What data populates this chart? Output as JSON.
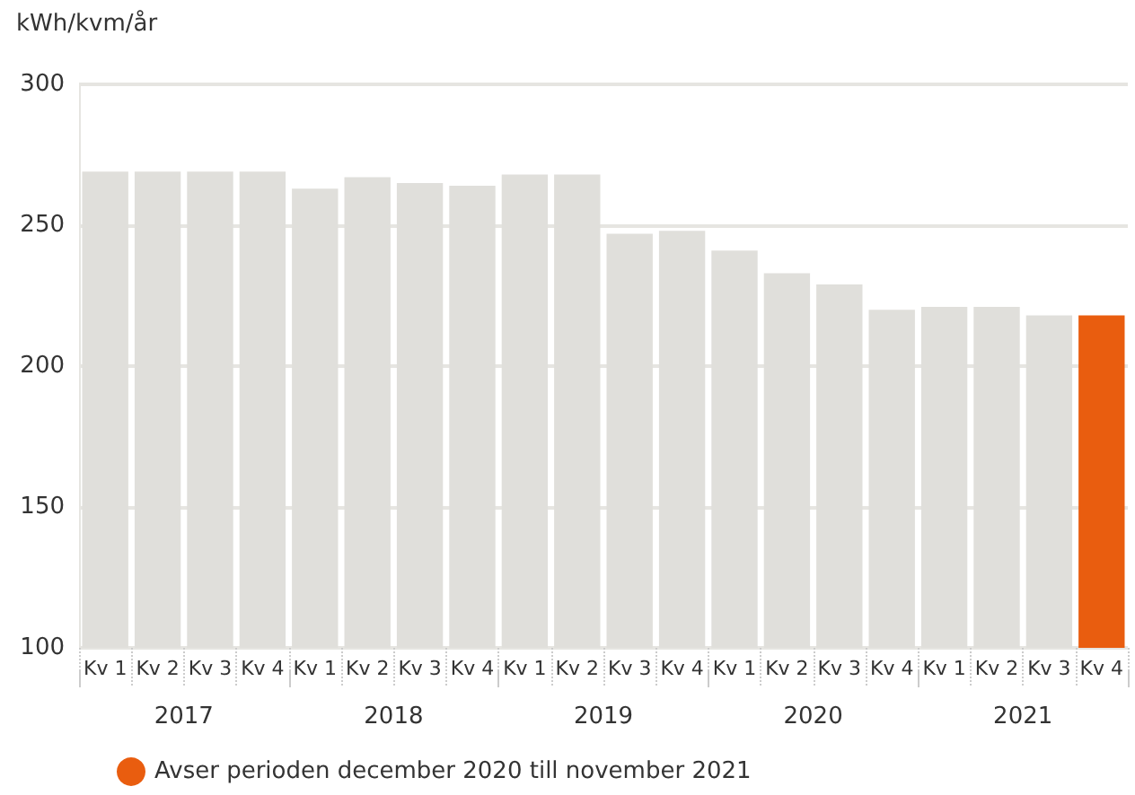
{
  "chart_data": {
    "type": "bar",
    "ylabel": "kWh/kvm/år",
    "categories": [
      "Kv 1",
      "Kv 2",
      "Kv 3",
      "Kv 4",
      "Kv 1",
      "Kv 2",
      "Kv 3",
      "Kv 4",
      "Kv 1",
      "Kv 2",
      "Kv 3",
      "Kv 4",
      "Kv 1",
      "Kv 2",
      "Kv 3",
      "Kv 4",
      "Kv 1",
      "Kv 2",
      "Kv 3",
      "Kv 4"
    ],
    "series": [
      {
        "color": "#e0dfdb",
        "values": [
          269,
          269,
          269,
          269,
          263,
          267,
          265,
          264,
          268,
          268,
          247,
          248,
          241,
          233,
          229,
          220,
          221,
          221,
          218,
          null
        ]
      },
      {
        "name": "Avser perioden december 2020 till november 2021",
        "color": "#e95d0f",
        "values": [
          null,
          null,
          null,
          null,
          null,
          null,
          null,
          null,
          null,
          null,
          null,
          null,
          null,
          null,
          null,
          null,
          null,
          null,
          null,
          218
        ]
      }
    ],
    "stacked": true,
    "ylim": [
      100,
      300
    ],
    "yticks": [
      100,
      150,
      200,
      250,
      300
    ],
    "grid": "y",
    "legend": "bottom left",
    "annotations": [
      "2017",
      "2018",
      "2019",
      "2020",
      "2021"
    ]
  }
}
